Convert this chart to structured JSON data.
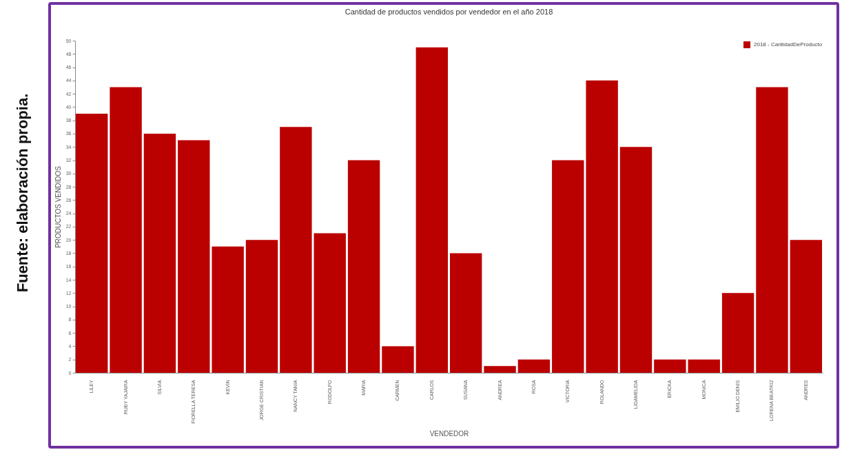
{
  "chart_data": {
    "type": "bar",
    "title": "Cantidad de productos vendidos por vendedor en el año 2018",
    "xlabel": "VENDEDOR",
    "ylabel": "PRODUCTOS VENDIDOS",
    "categories": [
      "LILEY",
      "RUBY YAJAIRA",
      "SILVIA",
      "FIORELLA TERESA",
      "KEVIN",
      "JORGE CRISTIAN",
      "NANCY TANIA",
      "RODOLFO",
      "MARIA",
      "CARMEN",
      "CARLOS",
      "SUSANA",
      "ANDREA",
      "ROSA",
      "VICTORIA",
      "ROLANDO",
      "LIDAMELIDA",
      "ERICKA",
      "MONICA",
      "EMILIO DENIS",
      "LORENA BEATRIZ",
      "ANDRES"
    ],
    "series": [
      {
        "name": "2018 - CantidadDeProducto",
        "color": "#bb0000",
        "values": [
          39,
          43,
          36,
          35,
          19,
          20,
          37,
          21,
          32,
          4,
          49,
          18,
          1,
          2,
          32,
          44,
          34,
          2,
          2,
          12,
          43,
          20
        ]
      }
    ],
    "ylim": [
      0,
      50
    ],
    "yticks": [
      0,
      2,
      4,
      6,
      8,
      10,
      12,
      14,
      16,
      18,
      20,
      22,
      24,
      26,
      28,
      30,
      32,
      34,
      36,
      38,
      40,
      42,
      44,
      46,
      48,
      50
    ],
    "grid": false,
    "legend": "top right",
    "annotations": [
      "Fuente: elaboración propia."
    ]
  }
}
